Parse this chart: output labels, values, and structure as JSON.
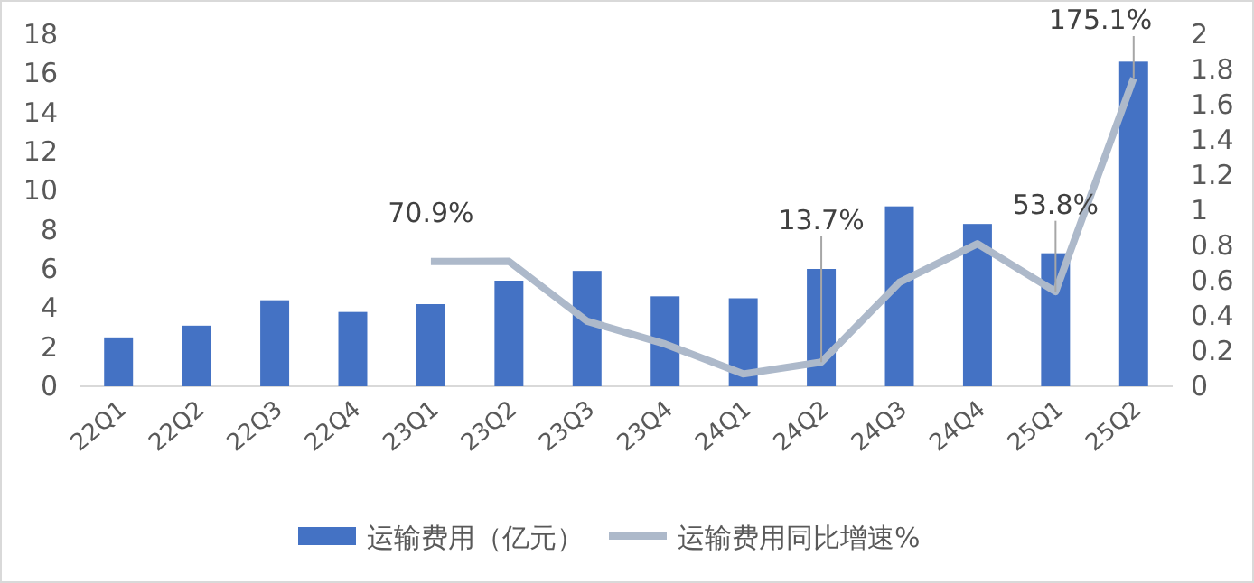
{
  "chart_data": {
    "type": "bar",
    "categories": [
      "22Q1",
      "22Q2",
      "22Q3",
      "22Q4",
      "23Q1",
      "23Q2",
      "23Q3",
      "23Q4",
      "24Q1",
      "24Q2",
      "24Q3",
      "24Q4",
      "25Q1",
      "25Q2"
    ],
    "series": [
      {
        "name": "运输费用（亿元）",
        "color": "#4472c4",
        "values": [
          2.5,
          3.1,
          4.4,
          3.8,
          4.2,
          5.4,
          5.9,
          4.6,
          4.5,
          6.0,
          9.2,
          8.3,
          6.8,
          16.6
        ]
      },
      {
        "name": "运输费用同比增速%",
        "type": "line",
        "axis": "y2",
        "color": "#adb9ca",
        "values": [
          null,
          null,
          null,
          null,
          0.709,
          0.71,
          0.37,
          0.24,
          0.07,
          0.137,
          0.59,
          0.81,
          0.538,
          1.751
        ],
        "value_labels": [
          null,
          null,
          null,
          null,
          "70.9%",
          null,
          null,
          null,
          null,
          "13.7%",
          null,
          null,
          "53.8%",
          "175.1%"
        ]
      }
    ],
    "ylim": [
      0,
      18
    ],
    "yticks": [
      0,
      2,
      4,
      6,
      8,
      10,
      12,
      14,
      16,
      18
    ],
    "y2lim": [
      0,
      2
    ],
    "y2ticks": [
      0,
      0.2,
      0.4,
      0.6,
      0.8,
      1,
      1.2,
      1.4,
      1.6,
      1.8,
      2
    ],
    "grid": false,
    "legend": "bottom",
    "marker": "none",
    "line_style": "solid"
  }
}
